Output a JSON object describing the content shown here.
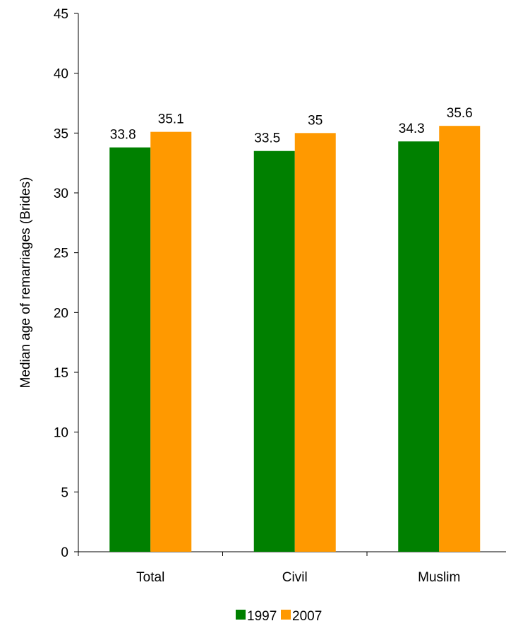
{
  "chart_data": {
    "type": "bar",
    "title": "",
    "xlabel": "",
    "ylabel": "Median age of remarriages (Brides)",
    "categories": [
      "Total",
      "Civil",
      "Muslim"
    ],
    "series": [
      {
        "name": "1997",
        "values": [
          33.8,
          33.5,
          34.3
        ],
        "labels": [
          "33.8",
          "33.5",
          "34.3"
        ],
        "color": "#008000"
      },
      {
        "name": "2007",
        "values": [
          35.1,
          35.0,
          35.6
        ],
        "labels": [
          "35.1",
          "35",
          "35.6"
        ],
        "color": "#FF9900"
      }
    ],
    "ylim": [
      0,
      45
    ],
    "yticks": [
      "0",
      "5",
      "10",
      "15",
      "20",
      "25",
      "30",
      "35",
      "40",
      "45"
    ],
    "grid": false,
    "legend_position": "bottom"
  }
}
